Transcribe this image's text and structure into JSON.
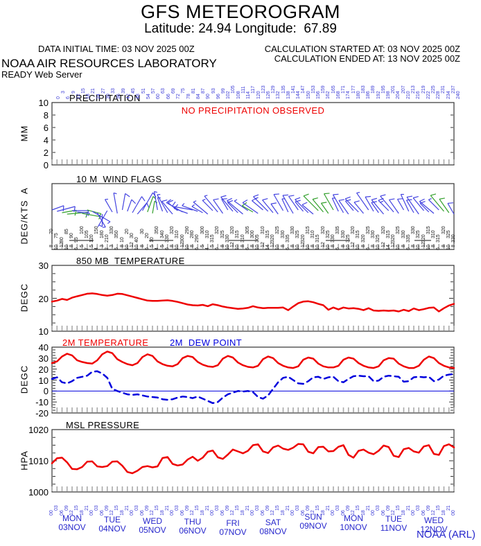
{
  "header": {
    "title": "GFS METEOROGRAM",
    "subtitle": "Latitude: 24.94 Longitude:  67.89",
    "data_initial_time": "DATA INITIAL TIME: 03 NOV 2025 00Z",
    "calc_started": "CALCULATION STARTED AT: 03 NOV 2025 00Z",
    "calc_ended": "CALCULATION ENDED AT: 13 NOV 2025 00Z",
    "org": "NOAA AIR RESOURCES LABORATORY",
    "server": "READY Web Server"
  },
  "footer": {
    "credit": "NOAA (ARL)"
  },
  "colors": {
    "series_red": "#ee0000",
    "dew_blue": "#0000dd",
    "label_blue": "#2727cc",
    "strip_blue": "#3b3bd6",
    "barb_blue": "#4343e0",
    "barb_green": "#33a02c",
    "border": "#333333",
    "xtick_gray": "#a8a8a8",
    "annotation_red": "#ee0000"
  },
  "x_axis": {
    "start_hour": 0,
    "step_hours": 3,
    "end_hour": 240,
    "day_labels": [
      {
        "weekday": "MON",
        "date": "03NOV"
      },
      {
        "weekday": "TUE",
        "date": "04NOV"
      },
      {
        "weekday": "WED",
        "date": "05NOV"
      },
      {
        "weekday": "THU",
        "date": "06NOV"
      },
      {
        "weekday": "FRI",
        "date": "07NOV"
      },
      {
        "weekday": "SAT",
        "date": "08NOV"
      },
      {
        "weekday": "SUN",
        "date": "09NOV"
      },
      {
        "weekday": "MON",
        "date": "10NOV"
      },
      {
        "weekday": "TUE",
        "date": "11NOV"
      },
      {
        "weekday": "WED",
        "date": "12NOV"
      }
    ]
  },
  "chart_data": [
    {
      "type": "line",
      "title": "PRECIPITATION",
      "ylabel": "MM",
      "ylim": [
        0,
        10
      ],
      "yticks": [
        10,
        8,
        6,
        4,
        2,
        0
      ],
      "annotation": "NO PRECIPITATION OBSERVED",
      "values": []
    },
    {
      "type": "wind-barbs",
      "title": "10 M  WIND FLAGS",
      "ylabel": "DEG/KTS  A",
      "direction_deg": [
        70,
        75,
        80,
        85,
        90,
        95,
        100,
        105,
        120,
        150,
        180,
        210,
        330,
        350,
        10,
        20,
        30,
        40,
        30,
        20,
        10,
        350,
        340,
        330,
        320,
        310,
        300,
        290,
        280,
        290,
        300,
        310,
        315,
        320,
        325,
        330,
        320,
        315,
        310,
        305,
        300,
        305,
        310,
        315,
        320,
        325,
        330,
        335,
        330,
        325,
        320,
        315,
        310,
        315,
        320,
        325,
        330,
        335,
        330,
        325,
        320,
        315,
        320,
        325,
        330,
        325,
        320,
        315,
        320,
        325,
        330,
        335,
        330,
        325,
        320,
        315,
        310,
        315,
        320,
        325,
        330
      ],
      "speed_kts": [
        8,
        10,
        12,
        10,
        8,
        6,
        5,
        7,
        5,
        4,
        3,
        2,
        3,
        5,
        8,
        10,
        12,
        10,
        8,
        6,
        5,
        4,
        5,
        6,
        8,
        10,
        12,
        10,
        8,
        6,
        5,
        4,
        5,
        6,
        8,
        10,
        12,
        10,
        8,
        6,
        8,
        10,
        12,
        14,
        12,
        10,
        8,
        6,
        8,
        10,
        12,
        10,
        8,
        10,
        12,
        10,
        8,
        6,
        8,
        10,
        12,
        10,
        8,
        6,
        8,
        10,
        12,
        14,
        12,
        10,
        8,
        6,
        8,
        10,
        12,
        10,
        8,
        6,
        8,
        10,
        8
      ],
      "green_indices": [
        2,
        3,
        6,
        7,
        19,
        20,
        40,
        53,
        54,
        55,
        56,
        78,
        79
      ]
    },
    {
      "type": "line",
      "title": "850 MB  TEMPERATURE",
      "ylabel": "DEGC",
      "ylim": [
        10,
        30
      ],
      "yticks": [
        30,
        20,
        10
      ],
      "values": [
        19.0,
        19.3,
        19.8,
        19.5,
        20.2,
        20.6,
        21.0,
        21.4,
        21.5,
        21.3,
        21.0,
        20.8,
        21.0,
        21.4,
        21.3,
        20.9,
        20.5,
        20.1,
        19.7,
        19.3,
        19.2,
        19.2,
        19.3,
        19.4,
        19.2,
        18.9,
        18.5,
        18.1,
        17.9,
        17.8,
        18.0,
        17.6,
        18.2,
        17.9,
        17.5,
        17.2,
        17.0,
        16.8,
        16.9,
        17.1,
        17.6,
        17.2,
        17.0,
        17.1,
        17.1,
        17.1,
        17.2,
        16.4,
        17.5,
        18.5,
        19.0,
        19.1,
        18.8,
        18.3,
        17.9,
        16.5,
        17.2,
        16.6,
        17.2,
        16.9,
        17.0,
        16.8,
        16.4,
        17.0,
        16.3,
        16.2,
        16.3,
        16.2,
        16.3,
        16.0,
        16.5,
        16.1,
        16.9,
        16.4,
        16.7,
        17.1,
        17.2,
        16.0,
        17.0,
        17.8,
        18.3
      ]
    },
    {
      "type": "line",
      "title": "2M TEMPERATURE",
      "title2": "2M  DEW POINT",
      "ylabel": "DEGC",
      "ylim": [
        -20,
        40
      ],
      "yticks": [
        40,
        30,
        20,
        10,
        0,
        -10,
        -20
      ],
      "series": [
        {
          "name": "2M TEMPERATURE",
          "values": [
            25.5,
            27.0,
            31.5,
            34.0,
            32.5,
            28.0,
            26.5,
            25.5,
            25.0,
            28.0,
            33.5,
            36.0,
            34.5,
            29.0,
            26.5,
            24.5,
            23.5,
            25.5,
            31.0,
            33.5,
            32.0,
            27.0,
            24.5,
            23.0,
            22.5,
            24.5,
            30.0,
            32.0,
            31.0,
            26.5,
            24.0,
            22.5,
            22.0,
            23.5,
            29.5,
            32.0,
            30.5,
            26.0,
            23.5,
            22.0,
            21.5,
            23.0,
            29.0,
            31.5,
            30.0,
            25.5,
            23.0,
            21.5,
            21.0,
            22.5,
            28.5,
            30.5,
            29.5,
            25.0,
            22.5,
            21.5,
            21.5,
            23.0,
            28.5,
            30.5,
            29.5,
            25.5,
            23.0,
            21.5,
            21.0,
            22.5,
            28.0,
            30.0,
            29.5,
            25.0,
            22.5,
            21.0,
            21.0,
            23.0,
            28.5,
            31.5,
            30.0,
            25.5,
            23.0,
            21.5,
            21.0
          ]
        },
        {
          "name": "2M DEW POINT",
          "style": "dashed",
          "values": [
            11.0,
            12.5,
            8.0,
            7.0,
            9.0,
            12.0,
            13.0,
            14.0,
            17.5,
            18.0,
            16.0,
            12.0,
            2.0,
            0.0,
            -1.5,
            -3.0,
            -3.5,
            -3.0,
            -4.0,
            -5.0,
            -5.5,
            -6.0,
            -7.5,
            -8.0,
            -7.5,
            -6.0,
            -5.0,
            -5.5,
            -6.5,
            -5.0,
            -7.0,
            -9.0,
            -11.0,
            -10.0,
            -6.0,
            -3.0,
            -1.5,
            0.0,
            -0.5,
            0.0,
            -1.0,
            -5.5,
            -7.0,
            -4.0,
            2.0,
            8.0,
            12.0,
            13.0,
            10.0,
            7.0,
            6.5,
            9.0,
            12.5,
            13.0,
            11.0,
            12.5,
            13.0,
            9.0,
            8.0,
            11.0,
            13.5,
            14.0,
            13.5,
            13.5,
            9.0,
            9.5,
            13.0,
            14.0,
            13.5,
            13.0,
            8.5,
            9.0,
            12.5,
            13.0,
            12.5,
            13.0,
            9.0,
            10.5,
            14.0,
            15.0,
            15.5
          ]
        }
      ]
    },
    {
      "type": "line",
      "title": "MSL PRESSURE",
      "ylabel": "HPA",
      "ylim": [
        1000,
        1020
      ],
      "yticks": [
        1020,
        1010,
        1000
      ],
      "values": [
        1009.2,
        1010.8,
        1011.0,
        1009.5,
        1007.4,
        1007.3,
        1008.0,
        1009.7,
        1009.8,
        1008.2,
        1008.0,
        1008.3,
        1009.7,
        1009.8,
        1008.4,
        1006.4,
        1006.0,
        1006.8,
        1008.0,
        1008.3,
        1007.9,
        1008.2,
        1010.9,
        1011.2,
        1009.0,
        1008.5,
        1008.8,
        1010.4,
        1011.3,
        1010.0,
        1011.0,
        1012.9,
        1013.3,
        1011.1,
        1010.6,
        1012.0,
        1013.6,
        1013.0,
        1012.4,
        1013.2,
        1015.0,
        1015.3,
        1013.0,
        1012.5,
        1014.3,
        1014.9,
        1013.9,
        1013.5,
        1014.2,
        1015.4,
        1015.3,
        1012.9,
        1012.4,
        1014.4,
        1014.5,
        1013.0,
        1013.1,
        1014.5,
        1015.0,
        1011.9,
        1011.0,
        1013.2,
        1013.6,
        1012.6,
        1012.1,
        1013.2,
        1014.9,
        1014.4,
        1011.6,
        1011.2,
        1013.7,
        1014.1,
        1013.0,
        1012.6,
        1014.6,
        1015.0,
        1012.2,
        1011.9,
        1014.7,
        1015.3,
        1014.3
      ]
    }
  ]
}
